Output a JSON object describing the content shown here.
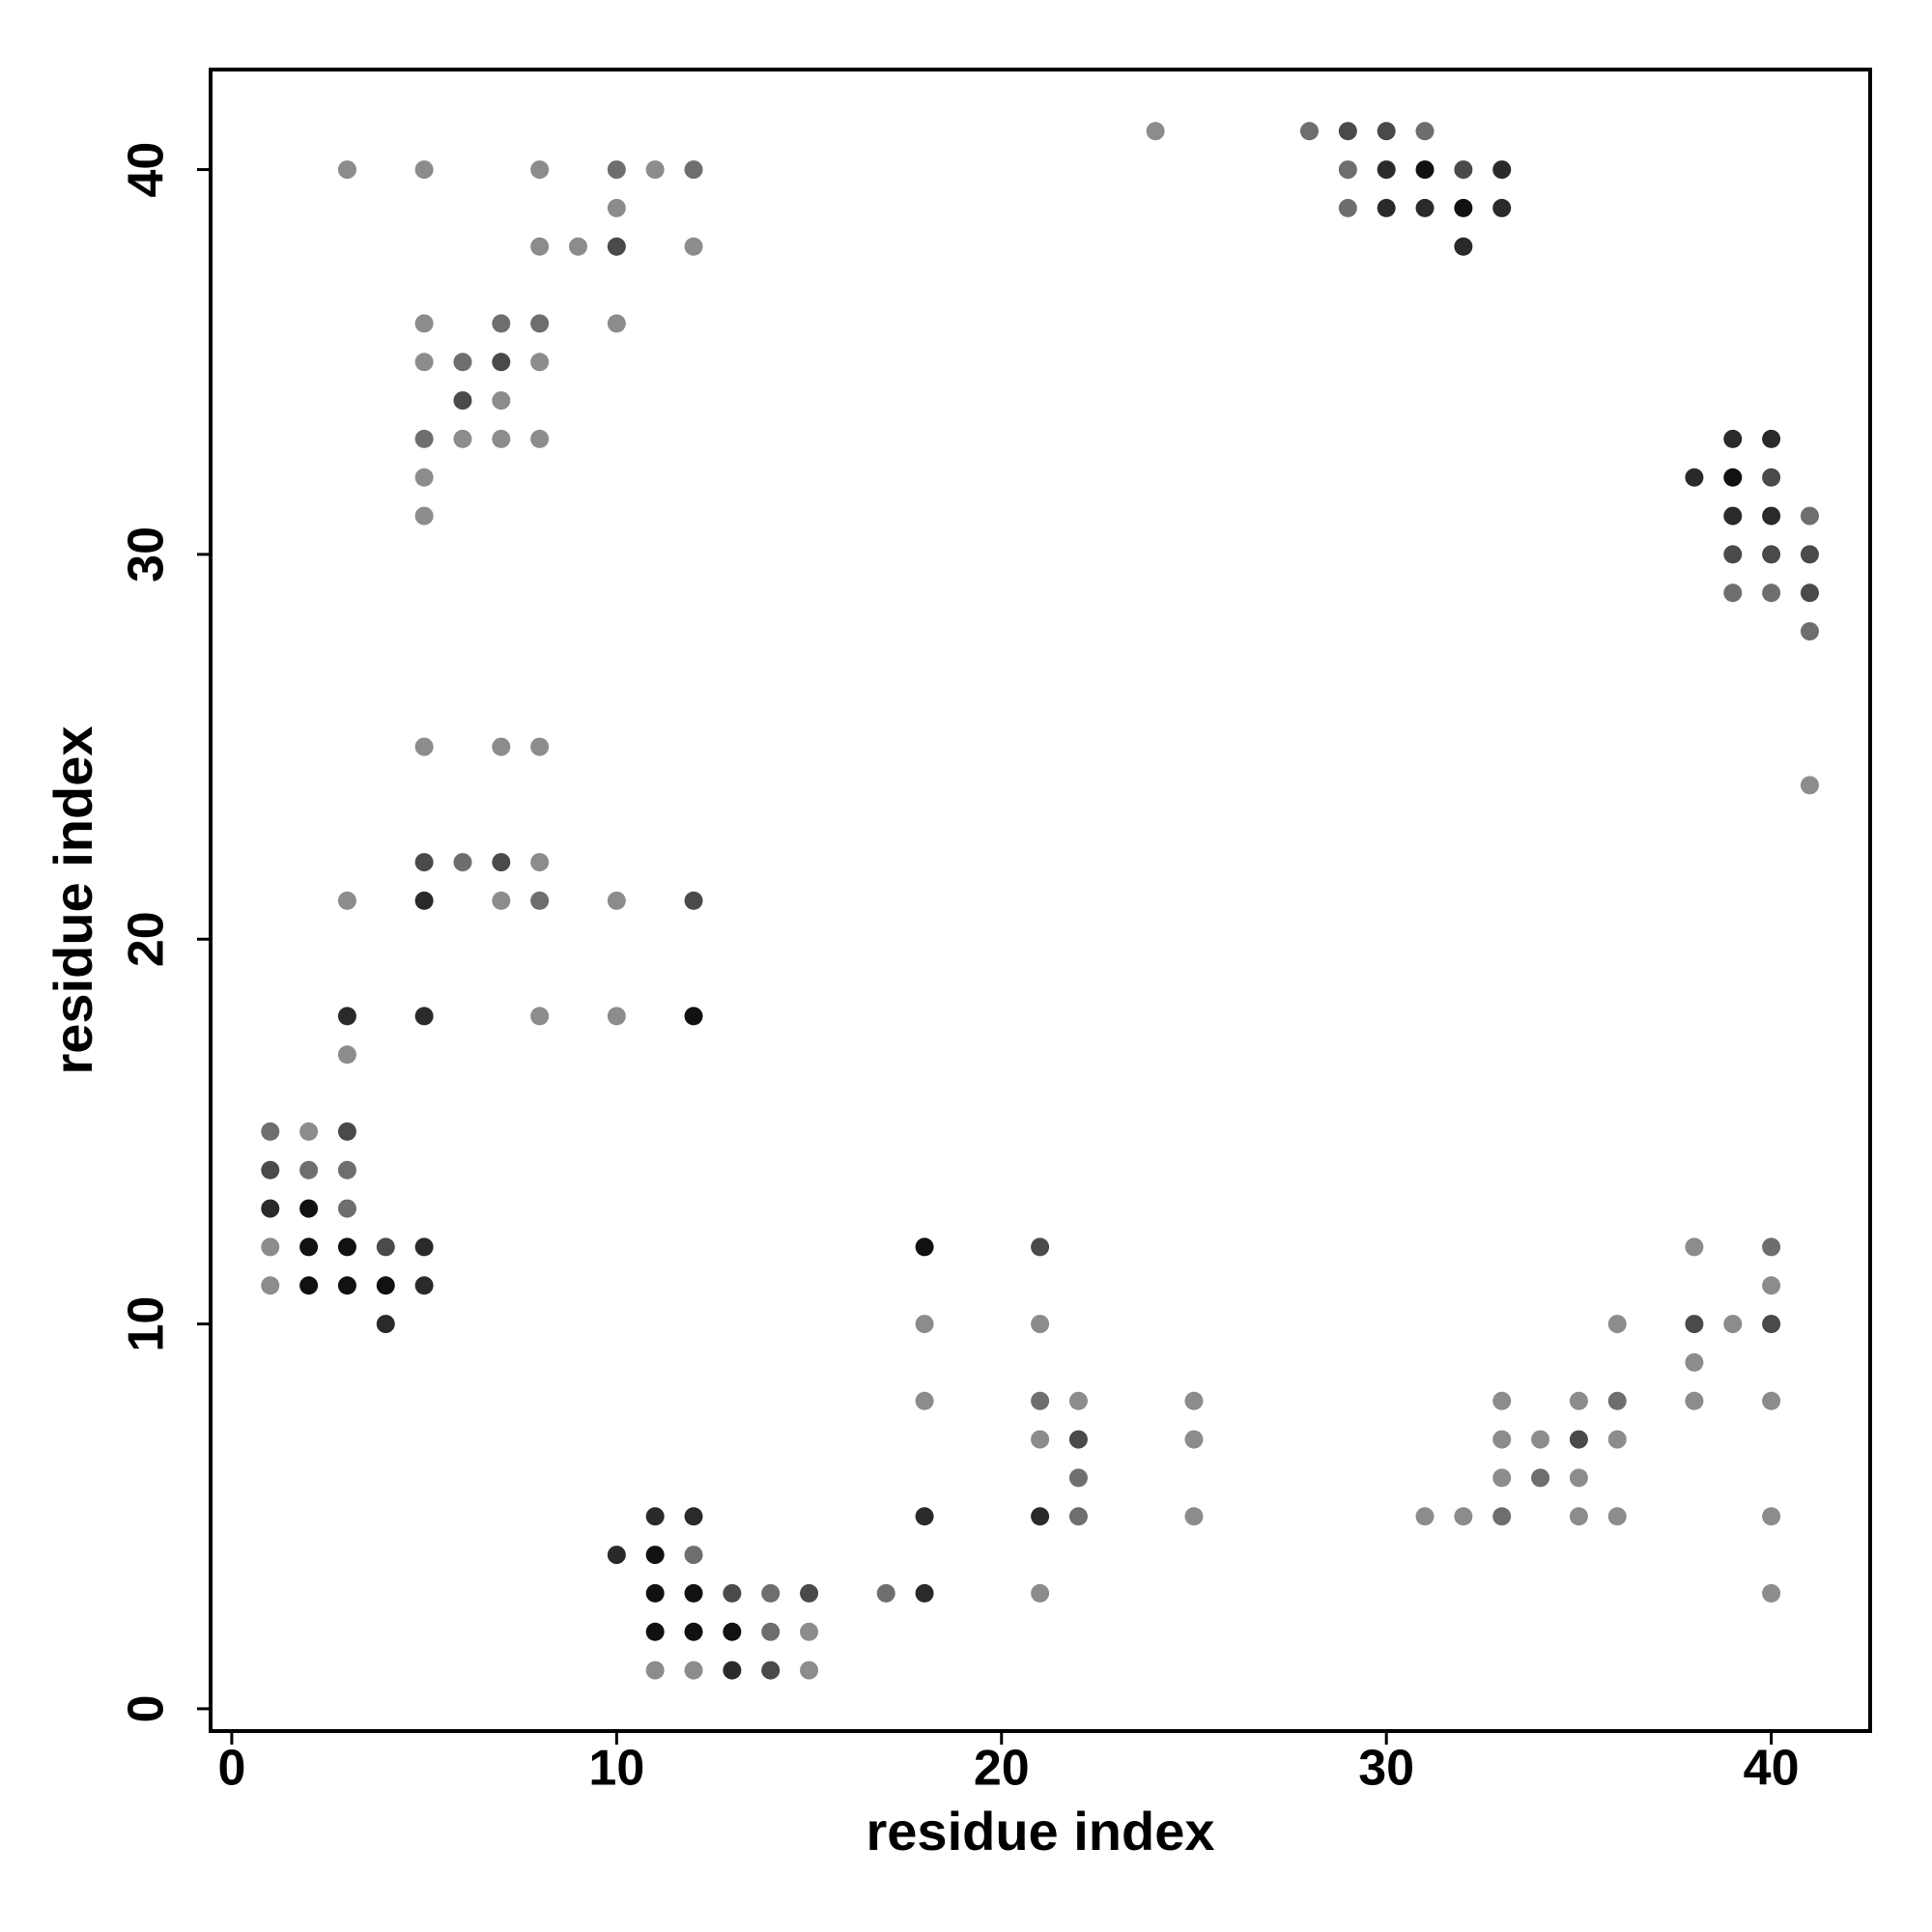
{
  "chart_data": {
    "type": "scatter",
    "xlabel": "residue index",
    "ylabel": "residue index",
    "xlim": [
      -0.55,
      42.57
    ],
    "ylim": [
      -0.58,
      42.6
    ],
    "xticks": [
      0,
      10,
      20,
      30,
      40
    ],
    "yticks": [
      0,
      10,
      20,
      30,
      40
    ],
    "grid": false,
    "x": [
      24,
      28,
      29,
      30,
      31,
      3,
      5,
      8,
      10,
      11,
      12,
      29,
      30,
      31,
      32,
      33,
      10,
      29,
      30,
      31,
      32,
      33,
      8,
      9,
      10,
      12,
      32,
      5,
      7,
      8,
      10,
      5,
      6,
      7,
      8,
      6,
      7,
      5,
      6,
      7,
      8,
      39,
      40,
      5,
      38,
      39,
      40,
      5,
      39,
      40,
      41,
      39,
      40,
      41,
      39,
      40,
      41,
      41,
      5,
      7,
      8,
      41,
      5,
      6,
      7,
      8,
      3,
      5,
      7,
      8,
      10,
      12,
      3,
      5,
      8,
      10,
      12,
      3,
      1,
      2,
      3,
      1,
      2,
      3,
      1,
      2,
      3,
      1,
      2,
      3,
      4,
      5,
      18,
      21,
      38,
      40,
      1,
      2,
      3,
      4,
      5,
      40,
      4,
      18,
      21,
      36,
      38,
      39,
      40,
      38,
      18,
      21,
      22,
      25,
      33,
      35,
      36,
      38,
      40,
      21,
      22,
      25,
      33,
      34,
      35,
      36,
      22,
      33,
      34,
      35,
      11,
      12,
      18,
      21,
      22,
      25,
      31,
      32,
      33,
      35,
      36,
      40,
      10,
      11,
      12,
      11,
      12,
      13,
      14,
      15,
      17,
      18,
      21,
      40,
      11,
      12,
      13,
      14,
      15,
      11,
      12,
      13,
      14,
      15
    ],
    "values": [
      41,
      41,
      41,
      41,
      41,
      40,
      40,
      40,
      40,
      40,
      40,
      40,
      40,
      40,
      40,
      40,
      39,
      39,
      39,
      39,
      39,
      39,
      38,
      38,
      38,
      38,
      38,
      36,
      36,
      36,
      36,
      35,
      35,
      35,
      35,
      34,
      34,
      33,
      33,
      33,
      33,
      33,
      33,
      32,
      32,
      32,
      32,
      31,
      31,
      31,
      31,
      30,
      30,
      30,
      29,
      29,
      29,
      28,
      25,
      25,
      25,
      24,
      22,
      22,
      22,
      22,
      21,
      21,
      21,
      21,
      21,
      21,
      18,
      18,
      18,
      18,
      18,
      17,
      15,
      15,
      15,
      14,
      14,
      14,
      13,
      13,
      13,
      12,
      12,
      12,
      12,
      12,
      12,
      12,
      12,
      12,
      11,
      11,
      11,
      11,
      11,
      11,
      10,
      10,
      10,
      10,
      10,
      10,
      10,
      9,
      8,
      8,
      8,
      8,
      8,
      8,
      8,
      8,
      8,
      7,
      7,
      7,
      7,
      7,
      7,
      7,
      6,
      6,
      6,
      6,
      5,
      5,
      5,
      5,
      5,
      5,
      5,
      5,
      5,
      5,
      5,
      5,
      4,
      4,
      4,
      3,
      3,
      3,
      3,
      3,
      3,
      3,
      3,
      3,
      2,
      2,
      2,
      2,
      2,
      1,
      1,
      1,
      1,
      1
    ],
    "colors": [
      "#8c8c8c",
      "#6e6e6e",
      "#4a4a4a",
      "#4a4a4a",
      "#6e6e6e",
      "#8c8c8c",
      "#8c8c8c",
      "#8c8c8c",
      "#6e6e6e",
      "#8c8c8c",
      "#6e6e6e",
      "#6e6e6e",
      "#2a2a2a",
      "#111111",
      "#4a4a4a",
      "#2a2a2a",
      "#8c8c8c",
      "#6e6e6e",
      "#2a2a2a",
      "#2a2a2a",
      "#111111",
      "#2a2a2a",
      "#8c8c8c",
      "#8c8c8c",
      "#4a4a4a",
      "#8c8c8c",
      "#2a2a2a",
      "#8c8c8c",
      "#6e6e6e",
      "#6e6e6e",
      "#8c8c8c",
      "#8c8c8c",
      "#6e6e6e",
      "#4a4a4a",
      "#8c8c8c",
      "#4a4a4a",
      "#8c8c8c",
      "#6e6e6e",
      "#8c8c8c",
      "#8c8c8c",
      "#8c8c8c",
      "#2a2a2a",
      "#2a2a2a",
      "#8c8c8c",
      "#2a2a2a",
      "#111111",
      "#4a4a4a",
      "#8c8c8c",
      "#2a2a2a",
      "#2a2a2a",
      "#6e6e6e",
      "#4a4a4a",
      "#4a4a4a",
      "#4a4a4a",
      "#6e6e6e",
      "#6e6e6e",
      "#4a4a4a",
      "#6e6e6e",
      "#8c8c8c",
      "#8c8c8c",
      "#8c8c8c",
      "#8c8c8c",
      "#4a4a4a",
      "#6e6e6e",
      "#4a4a4a",
      "#8c8c8c",
      "#8c8c8c",
      "#2a2a2a",
      "#8c8c8c",
      "#6e6e6e",
      "#8c8c8c",
      "#4a4a4a",
      "#2a2a2a",
      "#2a2a2a",
      "#8c8c8c",
      "#8c8c8c",
      "#111111",
      "#8c8c8c",
      "#6e6e6e",
      "#8c8c8c",
      "#4a4a4a",
      "#4a4a4a",
      "#6e6e6e",
      "#6e6e6e",
      "#2a2a2a",
      "#111111",
      "#6e6e6e",
      "#8c8c8c",
      "#111111",
      "#111111",
      "#4a4a4a",
      "#2a2a2a",
      "#111111",
      "#4a4a4a",
      "#8c8c8c",
      "#6e6e6e",
      "#8c8c8c",
      "#111111",
      "#111111",
      "#111111",
      "#2a2a2a",
      "#8c8c8c",
      "#2a2a2a",
      "#8c8c8c",
      "#8c8c8c",
      "#8c8c8c",
      "#4a4a4a",
      "#8c8c8c",
      "#4a4a4a",
      "#8c8c8c",
      "#8c8c8c",
      "#6e6e6e",
      "#8c8c8c",
      "#8c8c8c",
      "#8c8c8c",
      "#8c8c8c",
      "#6e6e6e",
      "#8c8c8c",
      "#8c8c8c",
      "#8c8c8c",
      "#4a4a4a",
      "#8c8c8c",
      "#8c8c8c",
      "#8c8c8c",
      "#4a4a4a",
      "#8c8c8c",
      "#6e6e6e",
      "#8c8c8c",
      "#6e6e6e",
      "#8c8c8c",
      "#2a2a2a",
      "#2a2a2a",
      "#2a2a2a",
      "#2a2a2a",
      "#6e6e6e",
      "#8c8c8c",
      "#8c8c8c",
      "#8c8c8c",
      "#6e6e6e",
      "#8c8c8c",
      "#8c8c8c",
      "#8c8c8c",
      "#2a2a2a",
      "#111111",
      "#6e6e6e",
      "#111111",
      "#111111",
      "#4a4a4a",
      "#6e6e6e",
      "#4a4a4a",
      "#6e6e6e",
      "#2a2a2a",
      "#8c8c8c",
      "#8c8c8c",
      "#111111",
      "#111111",
      "#111111",
      "#6e6e6e",
      "#8c8c8c",
      "#8c8c8c",
      "#8c8c8c",
      "#2a2a2a",
      "#4a4a4a",
      "#8c8c8c"
    ]
  }
}
